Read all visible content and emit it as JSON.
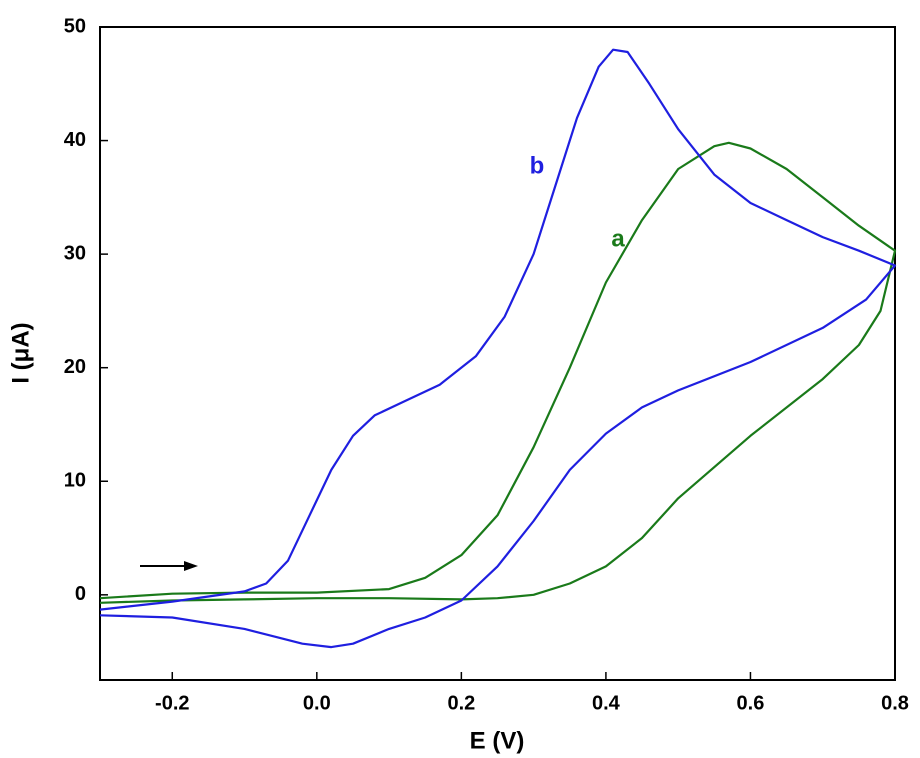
{
  "chart_data": {
    "type": "line",
    "x_label": "E (V)",
    "y_label": "I (μA)",
    "xlim": [
      -0.3,
      0.8
    ],
    "xticks": [
      -0.2,
      {
        "value": 0,
        "label": "0.0"
      },
      0.2,
      0.4,
      0.6,
      0.8
    ],
    "ylim": [
      -7.5,
      50
    ],
    "yticks": [
      0,
      10,
      20,
      30,
      40,
      50
    ],
    "series": [
      {
        "name": "a",
        "color": "#1a7a1a",
        "x": [
          -0.3,
          -0.2,
          -0.1,
          0.0,
          0.1,
          0.15,
          0.2,
          0.25,
          0.3,
          0.35,
          0.4,
          0.45,
          0.5,
          0.55,
          0.57,
          0.6,
          0.65,
          0.7,
          0.75,
          0.8,
          0.78,
          0.75,
          0.7,
          0.6,
          0.5,
          0.45,
          0.4,
          0.35,
          0.3,
          0.25,
          0.2,
          0.1,
          0.0,
          -0.1,
          -0.2,
          -0.3
        ],
        "values": [
          -0.3,
          0.1,
          0.2,
          0.2,
          0.5,
          1.5,
          3.5,
          7,
          13,
          20,
          27.5,
          33,
          37.5,
          39.5,
          39.8,
          39.3,
          37.5,
          35,
          32.5,
          30.3,
          25,
          22,
          19,
          14,
          8.5,
          5,
          2.5,
          1,
          0,
          -0.3,
          -0.4,
          -0.3,
          -0.3,
          -0.4,
          -0.5,
          -0.7
        ]
      },
      {
        "name": "b",
        "color": "#1f1fe0",
        "x": [
          -0.3,
          -0.2,
          -0.1,
          -0.07,
          -0.04,
          -0.01,
          0.02,
          0.05,
          0.08,
          0.12,
          0.17,
          0.22,
          0.26,
          0.3,
          0.33,
          0.36,
          0.39,
          0.41,
          0.43,
          0.46,
          0.5,
          0.55,
          0.6,
          0.65,
          0.7,
          0.75,
          0.8,
          0.76,
          0.7,
          0.6,
          0.5,
          0.45,
          0.4,
          0.35,
          0.3,
          0.25,
          0.2,
          0.15,
          0.1,
          0.05,
          0.02,
          -0.02,
          -0.1,
          -0.2,
          -0.3
        ],
        "values": [
          -1.3,
          -0.6,
          0.3,
          1,
          3,
          7,
          11,
          14,
          15.8,
          17,
          18.5,
          21,
          24.5,
          30,
          36,
          42,
          46.5,
          48,
          47.8,
          45,
          41,
          37,
          34.5,
          33,
          31.5,
          30.3,
          29,
          26,
          23.5,
          20.5,
          18,
          16.5,
          14.2,
          11,
          6.5,
          2.5,
          -0.5,
          -2,
          -3,
          -4.3,
          -4.6,
          -4.3,
          -3,
          -2,
          -1.8
        ]
      }
    ]
  }
}
